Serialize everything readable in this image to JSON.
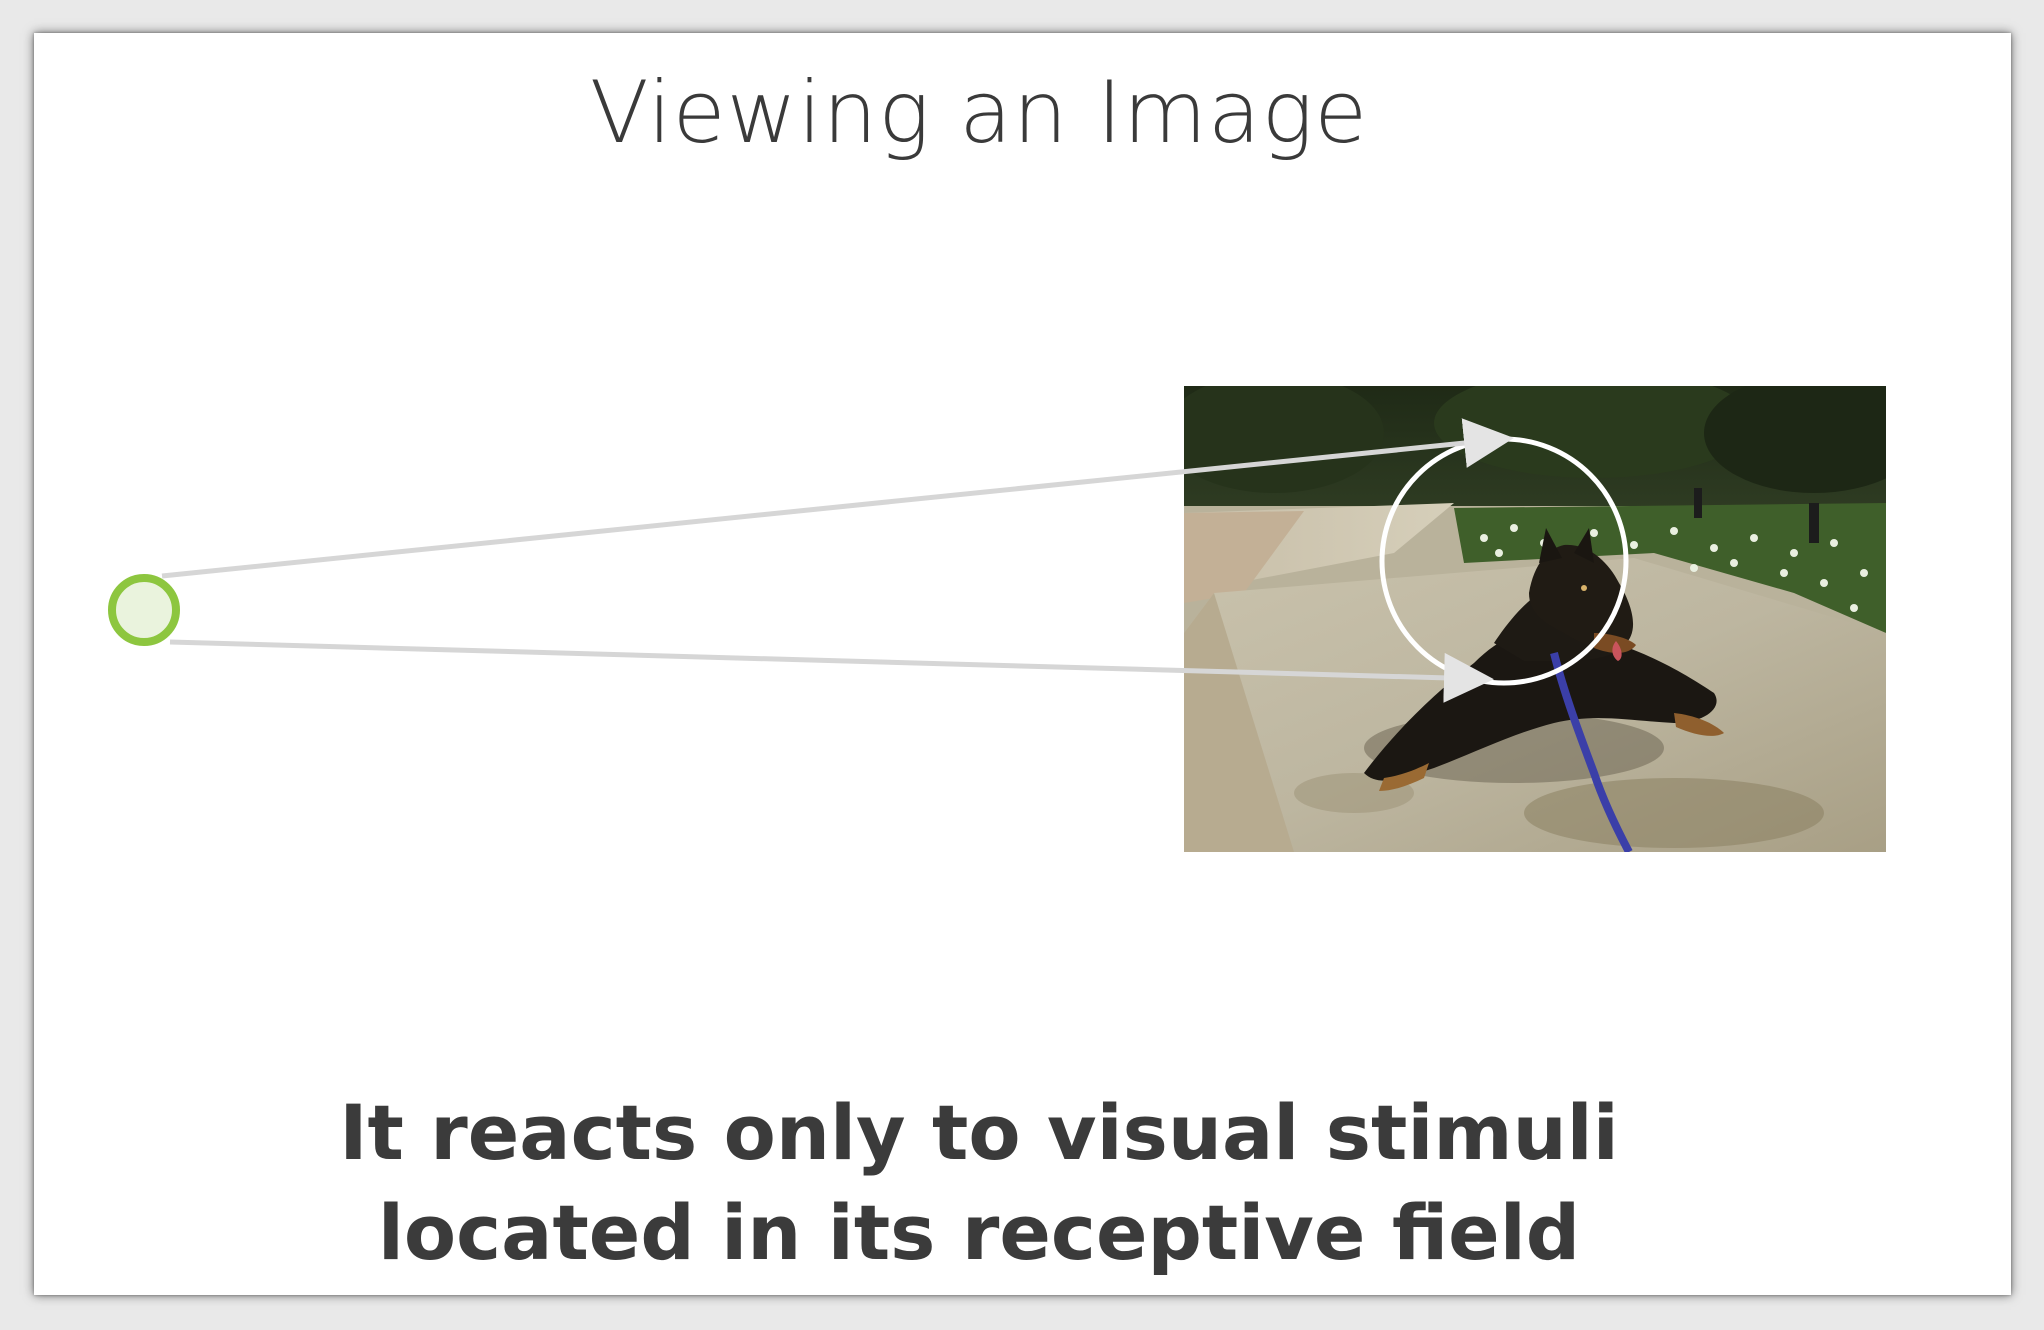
{
  "slide": {
    "title": "Viewing an Image",
    "caption_line1": "It reacts only to visual stimuli",
    "caption_line2": "located in its receptive field"
  },
  "diagram": {
    "neuron": {
      "label": "neuron-node",
      "stroke_color": "#8dc63f",
      "fill_color": "#eaf3dd"
    },
    "projection_line_color": "#d6d6d6",
    "receptive_field_color": "#ffffff",
    "photo_subject": "dog lying on concrete slab"
  }
}
